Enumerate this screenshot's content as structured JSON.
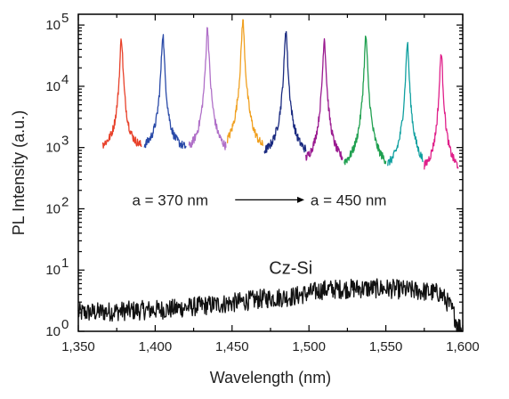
{
  "chart_data": {
    "type": "line",
    "title": "",
    "xlabel": "Wavelength (nm)",
    "ylabel": "PL Intensity (a.u.)",
    "xlim": [
      1350,
      1600
    ],
    "ylim": [
      1,
      150000
    ],
    "yscale": "log",
    "x_ticks": [
      1350,
      1400,
      1450,
      1500,
      1550,
      1600
    ],
    "x_tick_labels": [
      "1,350",
      "1,400",
      "1,450",
      "1,500",
      "1,550",
      "1,600"
    ],
    "y_tick_labels": [
      {
        "base": "10",
        "exp": "0",
        "value": 1
      },
      {
        "base": "10",
        "exp": "1",
        "value": 10
      },
      {
        "base": "10",
        "exp": "2",
        "value": 100
      },
      {
        "base": "10",
        "exp": "3",
        "value": 1000
      },
      {
        "base": "10",
        "exp": "4",
        "value": 10000
      },
      {
        "base": "10",
        "exp": "5",
        "value": 100000
      }
    ],
    "annotations": {
      "range_start": "a = 370 nm",
      "range_end": "a = 450 nm",
      "reference": "Cz-Si"
    },
    "grid": false,
    "peaks": [
      {
        "center": 1378,
        "peak": 60000,
        "base": 900,
        "x_start": 1366,
        "x_end": 1391,
        "color": "#e8412a"
      },
      {
        "center": 1405,
        "peak": 70000,
        "base": 850,
        "x_start": 1393,
        "x_end": 1420,
        "color": "#2a4aa8"
      },
      {
        "center": 1434,
        "peak": 90000,
        "base": 700,
        "x_start": 1422,
        "x_end": 1446,
        "color": "#b070c8"
      },
      {
        "center": 1457,
        "peak": 120000,
        "base": 700,
        "x_start": 1447,
        "x_end": 1470,
        "color": "#f0a020"
      },
      {
        "center": 1485,
        "peak": 85000,
        "base": 650,
        "x_start": 1471,
        "x_end": 1498,
        "color": "#1a2a80"
      },
      {
        "center": 1510,
        "peak": 60000,
        "base": 450,
        "x_start": 1498,
        "x_end": 1522,
        "color": "#9a1a90"
      },
      {
        "center": 1537,
        "peak": 65000,
        "base": 400,
        "x_start": 1523,
        "x_end": 1550,
        "color": "#20a050"
      },
      {
        "center": 1564,
        "peak": 50000,
        "base": 380,
        "x_start": 1551,
        "x_end": 1574,
        "color": "#10a0a0"
      },
      {
        "center": 1586,
        "peak": 35000,
        "base": 350,
        "x_start": 1575,
        "x_end": 1597,
        "color": "#e0208a"
      }
    ],
    "reference_series": {
      "name": "Cz-Si",
      "color": "#111111",
      "x": [
        1350,
        1370,
        1390,
        1410,
        1430,
        1450,
        1470,
        1490,
        1500,
        1510,
        1530,
        1550,
        1570,
        1585,
        1592,
        1596,
        1600
      ],
      "y": [
        2.0,
        2.1,
        2.2,
        2.3,
        2.6,
        2.9,
        3.4,
        3.7,
        4.2,
        4.8,
        5.0,
        5.0,
        4.6,
        4.2,
        2.5,
        1.4,
        1.0
      ]
    }
  }
}
